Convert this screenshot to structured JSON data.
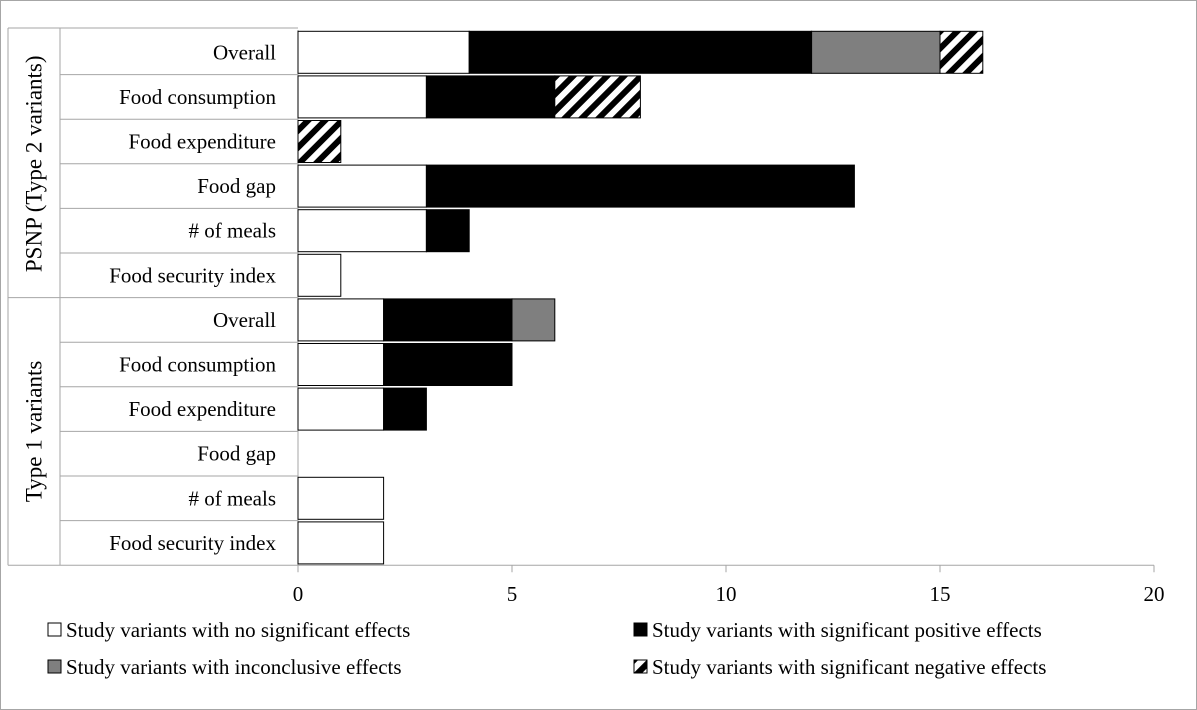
{
  "chart_data": {
    "type": "bar",
    "orientation": "horizontal",
    "stacked": true,
    "groups": [
      {
        "label": "PSNP (Type 2 variants)",
        "categories": [
          "Overall",
          "Food consumption",
          "Food expenditure",
          "Food gap",
          "# of meals",
          "Food security index"
        ]
      },
      {
        "label": "Type 1 variants",
        "categories": [
          "Overall",
          "Food consumption",
          "Food expenditure",
          "Food gap",
          "# of meals",
          "Food security index"
        ]
      }
    ],
    "series": [
      {
        "name": "Study variants with no significant effects",
        "color": "#ffffff",
        "pattern": "none",
        "values": [
          4,
          3,
          0,
          3,
          3,
          1,
          2,
          2,
          2,
          0,
          2,
          2
        ]
      },
      {
        "name": "Study variants with significant positive effects",
        "color": "#000000",
        "pattern": "none",
        "values": [
          8,
          3,
          0,
          10,
          1,
          0,
          3,
          3,
          1,
          0,
          0,
          0
        ]
      },
      {
        "name": "Study variants with inconclusive effects",
        "color": "#7f7f7f",
        "pattern": "none",
        "values": [
          3,
          0,
          0,
          0,
          0,
          0,
          1,
          0,
          0,
          0,
          0,
          0
        ]
      },
      {
        "name": "Study variants with significant negative effects",
        "color": "#000000",
        "pattern": "diagonal-stripes",
        "values": [
          1,
          2,
          1,
          0,
          0,
          0,
          0,
          0,
          0,
          0,
          0,
          0
        ]
      }
    ],
    "xlim": [
      0,
      20
    ],
    "xticks": [
      "0",
      "5",
      "10",
      "15",
      "20"
    ],
    "grid": false,
    "legend_position": "bottom"
  }
}
